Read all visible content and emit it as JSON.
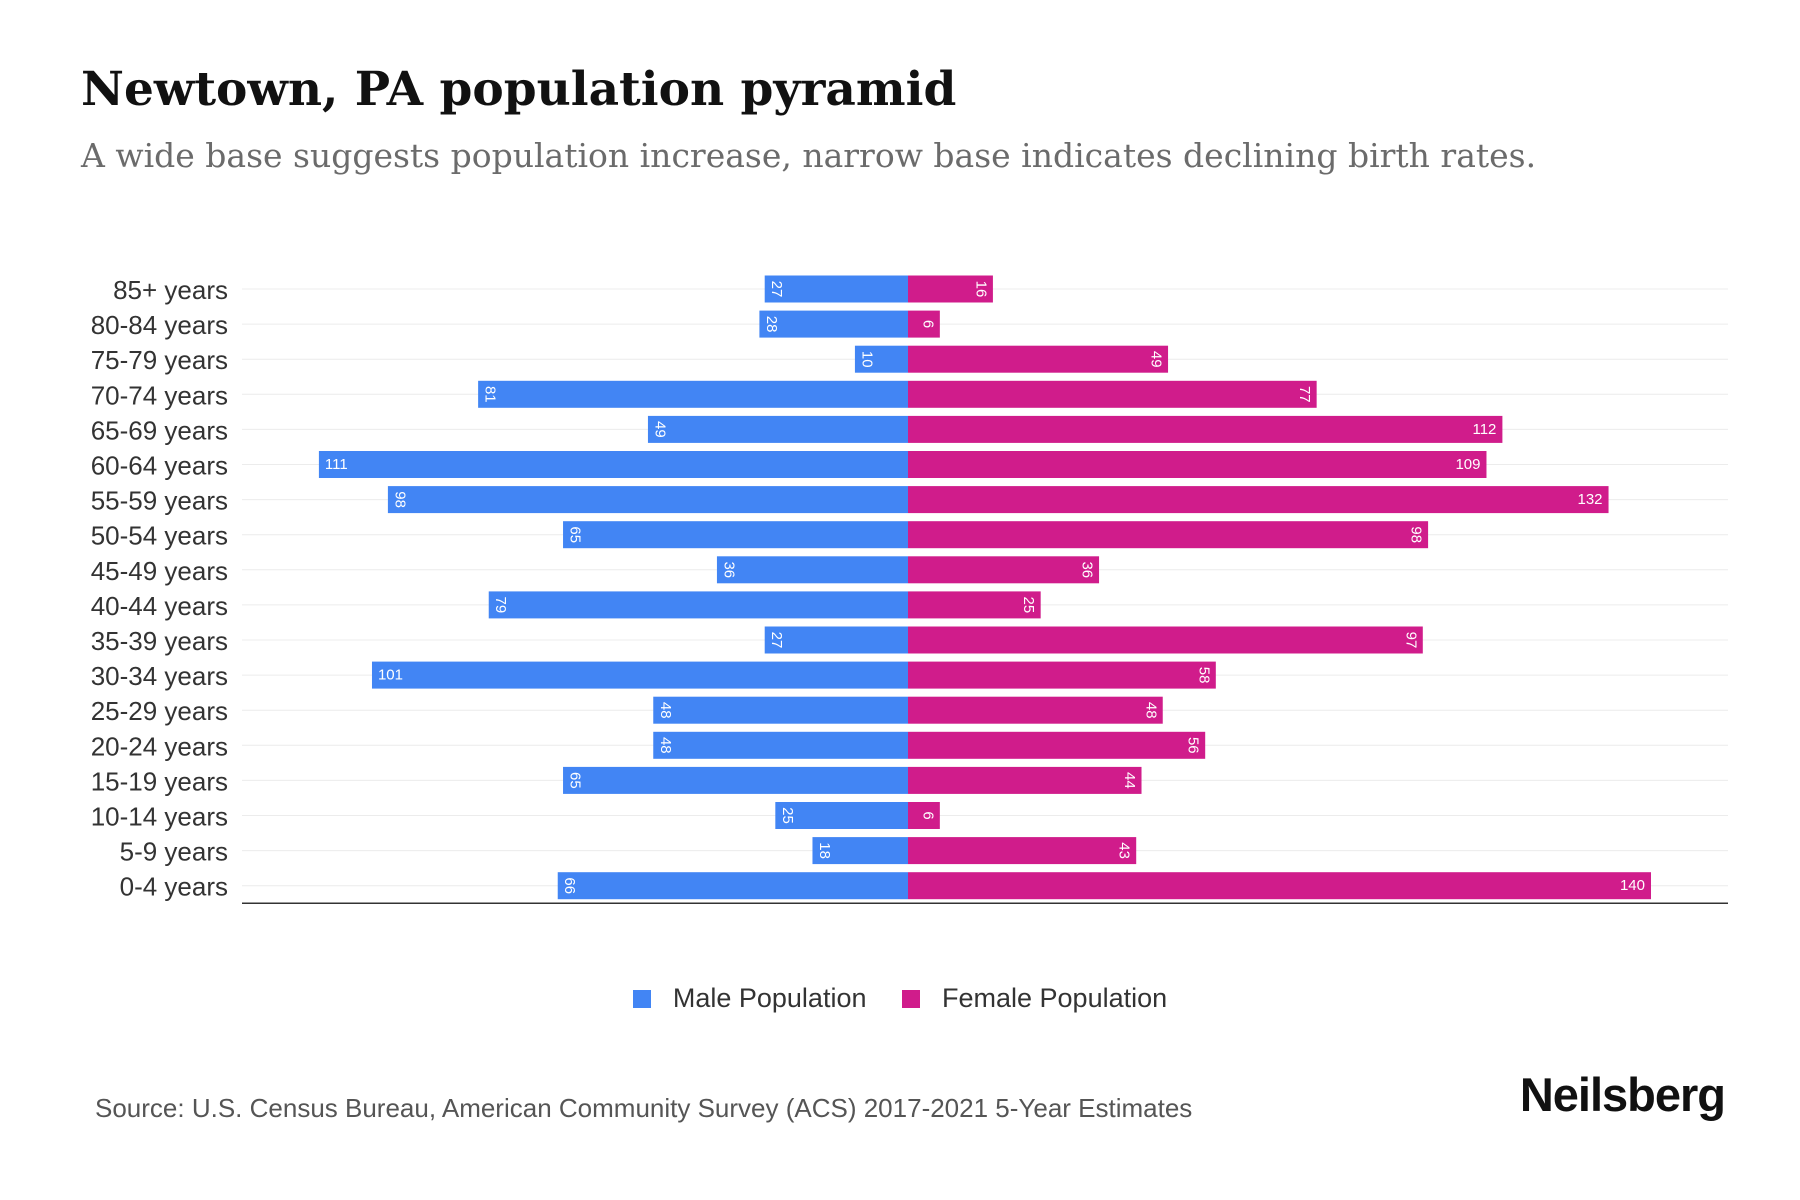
{
  "title": "Newtown, PA population pyramid",
  "subtitle": "A wide base suggests population increase, narrow base indicates declining birth rates.",
  "chart_data": {
    "type": "bar",
    "orientation": "horizontal-pyramid",
    "categories": [
      "85+ years",
      "80-84 years",
      "75-79 years",
      "70-74 years",
      "65-69 years",
      "60-64 years",
      "55-59 years",
      "50-54 years",
      "45-49 years",
      "40-44 years",
      "35-39 years",
      "30-34 years",
      "25-29 years",
      "20-24 years",
      "15-19 years",
      "10-14 years",
      "5-9 years",
      "0-4 years"
    ],
    "series": [
      {
        "name": "Male Population",
        "color": "#4285f4",
        "values": [
          27,
          28,
          10,
          81,
          49,
          111,
          98,
          65,
          36,
          79,
          27,
          101,
          48,
          48,
          65,
          25,
          18,
          66
        ]
      },
      {
        "name": "Female Population",
        "color": "#d01c8b",
        "values": [
          16,
          6,
          49,
          77,
          112,
          109,
          132,
          98,
          36,
          25,
          97,
          58,
          48,
          56,
          44,
          6,
          43,
          140
        ]
      }
    ],
    "xlim": [
      -125,
      155
    ],
    "legend_position": "bottom-center"
  },
  "source": "Source: U.S. Census Bureau, American Community Survey (ACS) 2017-2021 5-Year Estimates",
  "brand": "Neilsberg"
}
